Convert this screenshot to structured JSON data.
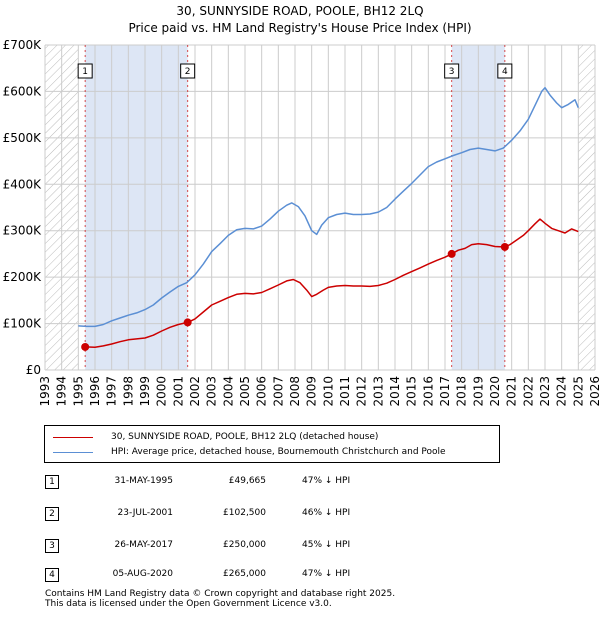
{
  "title_line1": "30, SUNNYSIDE ROAD, POOLE, BH12 2LQ",
  "title_line2": "Price paid vs. HM Land Registry's House Price Index (HPI)",
  "colors": {
    "price_line": "#cc0000",
    "hpi_line": "#5b8fd4",
    "shade": "#dde6f5",
    "hatch": "#bbbbbb",
    "grid": "#cccccc"
  },
  "legend": {
    "property": "30, SUNNYSIDE ROAD, POOLE, BH12 2LQ (detached house)",
    "hpi": "HPI: Average price, detached house, Bournemouth Christchurch and Poole"
  },
  "transactions": [
    {
      "num": "1",
      "date": "31-MAY-1995",
      "price": "£49,665",
      "hpi_diff": "47% ↓ HPI"
    },
    {
      "num": "2",
      "date": "23-JUL-2001",
      "price": "£102,500",
      "hpi_diff": "46% ↓ HPI"
    },
    {
      "num": "3",
      "date": "26-MAY-2017",
      "price": "£250,000",
      "hpi_diff": "45% ↓ HPI"
    },
    {
      "num": "4",
      "date": "05-AUG-2020",
      "price": "£265,000",
      "hpi_diff": "47% ↓ HPI"
    }
  ],
  "footer": {
    "line1": "Contains HM Land Registry data © Crown copyright and database right 2025.",
    "line2": "This data is licensed under the Open Government Licence v3.0."
  },
  "chart_data": {
    "type": "line",
    "title": "30, SUNNYSIDE ROAD, POOLE, BH12 2LQ — Price paid vs. HM Land Registry's House Price Index (HPI)",
    "xlabel": "",
    "ylabel": "",
    "xlim": [
      1993,
      2026
    ],
    "ylim": [
      0,
      700000
    ],
    "y_ticks": [
      {
        "value": 0,
        "label": "£0"
      },
      {
        "value": 100000,
        "label": "£100K"
      },
      {
        "value": 200000,
        "label": "£200K"
      },
      {
        "value": 300000,
        "label": "£300K"
      },
      {
        "value": 400000,
        "label": "£400K"
      },
      {
        "value": 500000,
        "label": "£500K"
      },
      {
        "value": 600000,
        "label": "£600K"
      },
      {
        "value": 700000,
        "label": "£700K"
      }
    ],
    "x_ticks": [
      "1993",
      "1994",
      "1995",
      "1996",
      "1997",
      "1998",
      "1999",
      "2000",
      "2001",
      "2002",
      "2003",
      "2004",
      "2005",
      "2006",
      "2007",
      "2008",
      "2009",
      "2010",
      "2011",
      "2012",
      "2013",
      "2014",
      "2015",
      "2016",
      "2017",
      "2018",
      "2019",
      "2020",
      "2021",
      "2022",
      "2023",
      "2024",
      "2025",
      "2026"
    ],
    "data_start": 1995.0,
    "data_end": 2025.0,
    "shaded_ranges": [
      [
        1995.41,
        2001.56
      ],
      [
        2017.4,
        2020.59
      ]
    ],
    "series": [
      {
        "name": "30, SUNNYSIDE ROAD, POOLE, BH12 2LQ (detached house)",
        "color": "#cc0000",
        "points": [
          [
            1995.41,
            49665
          ],
          [
            1996.0,
            49000
          ],
          [
            1996.5,
            52000
          ],
          [
            1997.0,
            56000
          ],
          [
            1997.5,
            61000
          ],
          [
            1998.0,
            65000
          ],
          [
            1998.5,
            67000
          ],
          [
            1999.0,
            69000
          ],
          [
            1999.5,
            75000
          ],
          [
            2000.0,
            84000
          ],
          [
            2000.5,
            92000
          ],
          [
            2001.0,
            98000
          ],
          [
            2001.56,
            102500
          ],
          [
            2002.0,
            110000
          ],
          [
            2002.5,
            125000
          ],
          [
            2003.0,
            140000
          ],
          [
            2003.5,
            148000
          ],
          [
            2004.0,
            156000
          ],
          [
            2004.5,
            163000
          ],
          [
            2005.0,
            165000
          ],
          [
            2005.5,
            164000
          ],
          [
            2006.0,
            167000
          ],
          [
            2006.5,
            175000
          ],
          [
            2007.0,
            183000
          ],
          [
            2007.5,
            192000
          ],
          [
            2007.9,
            195000
          ],
          [
            2008.3,
            188000
          ],
          [
            2008.7,
            172000
          ],
          [
            2009.0,
            158000
          ],
          [
            2009.3,
            163000
          ],
          [
            2009.7,
            172000
          ],
          [
            2010.0,
            178000
          ],
          [
            2010.5,
            181000
          ],
          [
            2011.0,
            182000
          ],
          [
            2011.5,
            181000
          ],
          [
            2012.0,
            181000
          ],
          [
            2012.5,
            180000
          ],
          [
            2013.0,
            182000
          ],
          [
            2013.5,
            187000
          ],
          [
            2014.0,
            195000
          ],
          [
            2014.5,
            204000
          ],
          [
            2015.0,
            212000
          ],
          [
            2015.5,
            220000
          ],
          [
            2016.0,
            228000
          ],
          [
            2016.5,
            236000
          ],
          [
            2017.0,
            243000
          ],
          [
            2017.4,
            250000
          ],
          [
            2017.8,
            258000
          ],
          [
            2018.2,
            262000
          ],
          [
            2018.6,
            270000
          ],
          [
            2019.0,
            272000
          ],
          [
            2019.5,
            270000
          ],
          [
            2020.0,
            266000
          ],
          [
            2020.59,
            265000
          ],
          [
            2020.9,
            270000
          ],
          [
            2021.3,
            280000
          ],
          [
            2021.7,
            290000
          ],
          [
            2022.0,
            300000
          ],
          [
            2022.4,
            315000
          ],
          [
            2022.7,
            325000
          ],
          [
            2023.0,
            316000
          ],
          [
            2023.4,
            305000
          ],
          [
            2023.8,
            300000
          ],
          [
            2024.2,
            295000
          ],
          [
            2024.6,
            304000
          ],
          [
            2025.0,
            298000
          ]
        ]
      },
      {
        "name": "HPI: Average price, detached house, Bournemouth Christchurch and Poole",
        "color": "#5b8fd4",
        "points": [
          [
            1995.0,
            95000
          ],
          [
            1995.5,
            94000
          ],
          [
            1996.0,
            94000
          ],
          [
            1996.5,
            98000
          ],
          [
            1997.0,
            106000
          ],
          [
            1997.5,
            112000
          ],
          [
            1998.0,
            118000
          ],
          [
            1998.5,
            123000
          ],
          [
            1999.0,
            130000
          ],
          [
            1999.5,
            140000
          ],
          [
            2000.0,
            155000
          ],
          [
            2000.5,
            168000
          ],
          [
            2001.0,
            180000
          ],
          [
            2001.5,
            188000
          ],
          [
            2002.0,
            205000
          ],
          [
            2002.5,
            228000
          ],
          [
            2003.0,
            255000
          ],
          [
            2003.5,
            272000
          ],
          [
            2004.0,
            290000
          ],
          [
            2004.5,
            302000
          ],
          [
            2005.0,
            305000
          ],
          [
            2005.5,
            304000
          ],
          [
            2006.0,
            310000
          ],
          [
            2006.5,
            325000
          ],
          [
            2007.0,
            342000
          ],
          [
            2007.5,
            355000
          ],
          [
            2007.8,
            360000
          ],
          [
            2008.2,
            352000
          ],
          [
            2008.6,
            332000
          ],
          [
            2009.0,
            300000
          ],
          [
            2009.3,
            292000
          ],
          [
            2009.6,
            312000
          ],
          [
            2010.0,
            328000
          ],
          [
            2010.5,
            335000
          ],
          [
            2011.0,
            338000
          ],
          [
            2011.5,
            335000
          ],
          [
            2012.0,
            335000
          ],
          [
            2012.5,
            336000
          ],
          [
            2013.0,
            340000
          ],
          [
            2013.5,
            350000
          ],
          [
            2014.0,
            368000
          ],
          [
            2014.5,
            385000
          ],
          [
            2015.0,
            402000
          ],
          [
            2015.5,
            420000
          ],
          [
            2016.0,
            438000
          ],
          [
            2016.5,
            448000
          ],
          [
            2017.0,
            455000
          ],
          [
            2017.5,
            462000
          ],
          [
            2018.0,
            468000
          ],
          [
            2018.5,
            475000
          ],
          [
            2019.0,
            478000
          ],
          [
            2019.5,
            475000
          ],
          [
            2020.0,
            472000
          ],
          [
            2020.5,
            478000
          ],
          [
            2021.0,
            495000
          ],
          [
            2021.5,
            515000
          ],
          [
            2022.0,
            540000
          ],
          [
            2022.4,
            570000
          ],
          [
            2022.8,
            600000
          ],
          [
            2023.0,
            608000
          ],
          [
            2023.3,
            592000
          ],
          [
            2023.7,
            575000
          ],
          [
            2024.0,
            565000
          ],
          [
            2024.4,
            572000
          ],
          [
            2024.8,
            582000
          ],
          [
            2025.0,
            565000
          ]
        ]
      }
    ],
    "sales": [
      {
        "label": "1",
        "x": 1995.41,
        "y": 49665
      },
      {
        "label": "2",
        "x": 2001.56,
        "y": 102500
      },
      {
        "label": "3",
        "x": 2017.4,
        "y": 250000
      },
      {
        "label": "4",
        "x": 2020.59,
        "y": 265000
      }
    ]
  }
}
